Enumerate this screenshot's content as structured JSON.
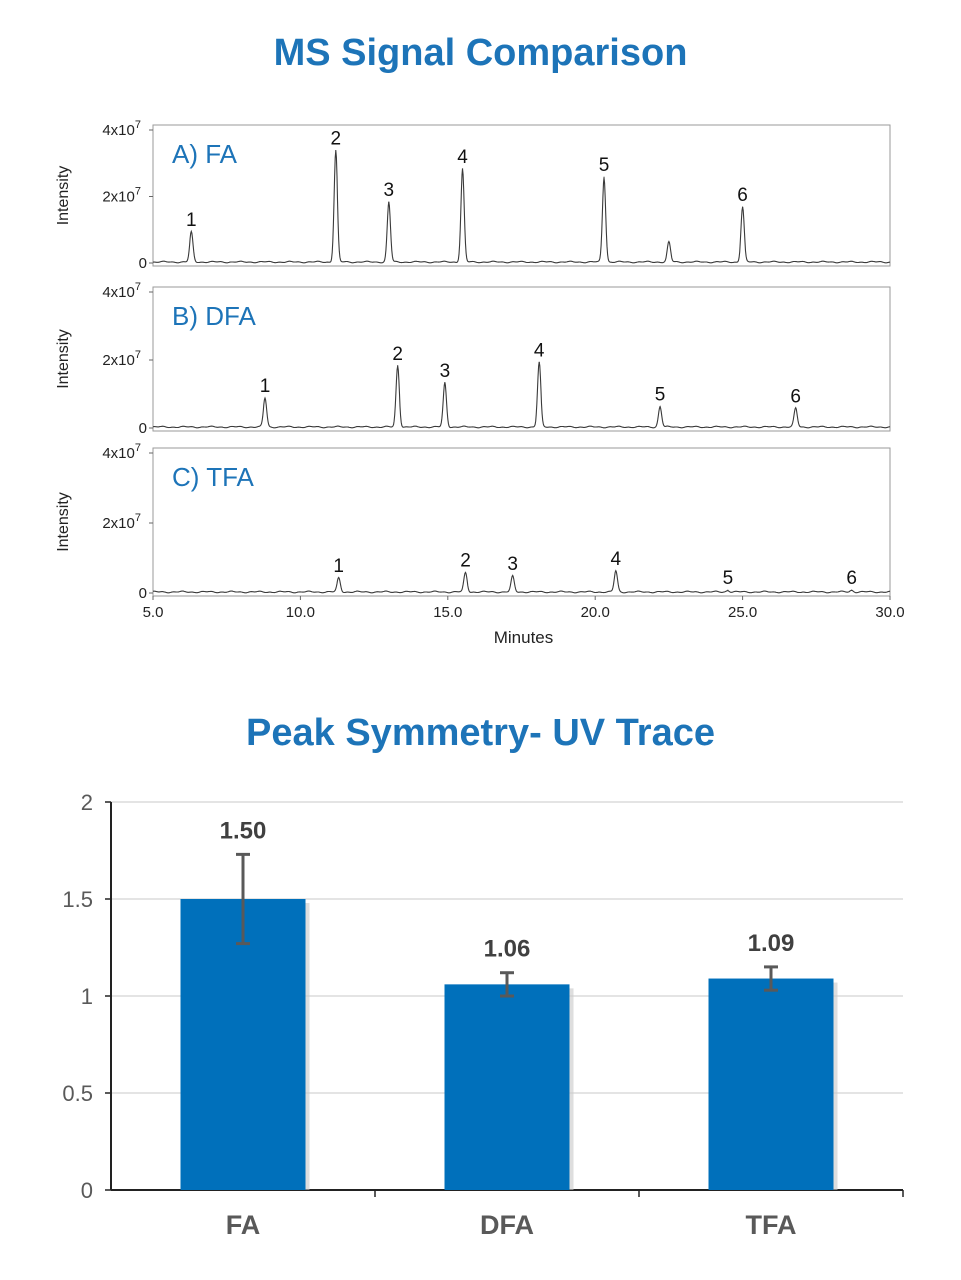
{
  "ms_title": "MS Signal Comparison",
  "bar_title": "Peak Symmetry- UV Trace",
  "chart_data": [
    {
      "type": "line",
      "panels": [
        {
          "label": "A) FA",
          "peaks": [
            {
              "id": "1",
              "x": 6.3,
              "y": 0.9
            },
            {
              "id": "2",
              "x": 11.2,
              "y": 3.35
            },
            {
              "id": "3",
              "x": 13.0,
              "y": 1.8
            },
            {
              "id": "4",
              "x": 15.5,
              "y": 2.8
            },
            {
              "id": "5",
              "x": 20.3,
              "y": 2.55
            },
            {
              "id": "",
              "x": 22.5,
              "y": 0.6
            },
            {
              "id": "6",
              "x": 25.0,
              "y": 1.65
            }
          ]
        },
        {
          "label": "B) DFA",
          "peaks": [
            {
              "id": "1",
              "x": 8.8,
              "y": 0.85
            },
            {
              "id": "2",
              "x": 13.3,
              "y": 1.8
            },
            {
              "id": "3",
              "x": 14.9,
              "y": 1.3
            },
            {
              "id": "4",
              "x": 18.1,
              "y": 1.9
            },
            {
              "id": "5",
              "x": 22.2,
              "y": 0.6
            },
            {
              "id": "6",
              "x": 26.8,
              "y": 0.55
            }
          ]
        },
        {
          "label": "C) TFA",
          "peaks": [
            {
              "id": "1",
              "x": 11.3,
              "y": 0.4
            },
            {
              "id": "2",
              "x": 15.6,
              "y": 0.55
            },
            {
              "id": "3",
              "x": 17.2,
              "y": 0.45
            },
            {
              "id": "4",
              "x": 20.7,
              "y": 0.6
            },
            {
              "id": "5",
              "x": 24.5,
              "y": 0.05
            },
            {
              "id": "6",
              "x": 28.7,
              "y": 0.05
            }
          ]
        }
      ],
      "ylabel": "Intensity",
      "xlabel": "Minutes",
      "xlim": [
        5.0,
        30.0
      ],
      "x_ticks": [
        "5.0",
        "10.0",
        "15.0",
        "20.0",
        "25.0",
        "30.0"
      ],
      "ylim": [
        0,
        4
      ],
      "y_ticks": [
        {
          "value": 0,
          "base": "0",
          "exp": ""
        },
        {
          "value": 2,
          "base": "2x10",
          "exp": "7"
        },
        {
          "value": 4,
          "base": "4x10",
          "exp": "7"
        }
      ],
      "y_unit_note": "y values in units of 10^7"
    },
    {
      "type": "bar",
      "categories": [
        "FA",
        "DFA",
        "TFA"
      ],
      "values": [
        1.5,
        1.06,
        1.09
      ],
      "value_labels": [
        "1.50",
        "1.06",
        "1.09"
      ],
      "error_low": [
        1.27,
        1.0,
        1.03
      ],
      "error_high": [
        1.73,
        1.12,
        1.15
      ],
      "ylim": [
        0,
        2
      ],
      "y_ticks": [
        "0",
        "0.5",
        "1",
        "1.5",
        "2"
      ],
      "grid": true,
      "bar_color": "#0070bb",
      "error_color": "#595959"
    }
  ],
  "colors": {
    "title": "#1d74b8",
    "panel_label": "#1d74b8",
    "trace": "#3a3a3a"
  }
}
